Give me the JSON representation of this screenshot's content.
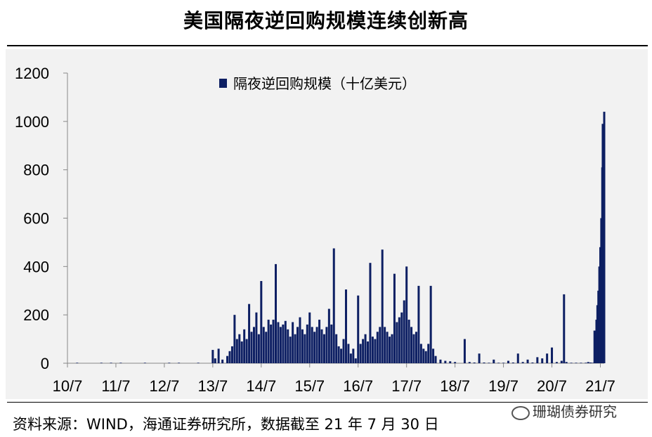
{
  "title": "美国隔夜逆回购规模连续创新高",
  "source": "资料来源：WIND，海通证券研究所，数据截至 21 年 7 月 30 日",
  "watermark": "珊瑚债券研究",
  "colors": {
    "series": "#0d1f63",
    "axis": "#888888",
    "panel": "#f2f2f2"
  },
  "chart_data": {
    "type": "bar",
    "title": "",
    "xlabel": "",
    "ylabel": "",
    "ylim": [
      0,
      1200
    ],
    "yticks": [
      0,
      200,
      400,
      600,
      800,
      1000,
      1200
    ],
    "xlim": [
      2010.5,
      2021.58
    ],
    "xticks": [
      {
        "label": "10/7",
        "x": 2010.5
      },
      {
        "label": "11/7",
        "x": 2011.5
      },
      {
        "label": "12/7",
        "x": 2012.5
      },
      {
        "label": "13/7",
        "x": 2013.5
      },
      {
        "label": "14/7",
        "x": 2014.5
      },
      {
        "label": "15/7",
        "x": 2015.5
      },
      {
        "label": "16/7",
        "x": 2016.5
      },
      {
        "label": "17/7",
        "x": 2017.5
      },
      {
        "label": "18/7",
        "x": 2018.5
      },
      {
        "label": "19/7",
        "x": 2019.5
      },
      {
        "label": "20/7",
        "x": 2020.5
      },
      {
        "label": "21/7",
        "x": 2021.5
      }
    ],
    "grid": false,
    "legend": "top-center",
    "series": [
      {
        "name": "隔夜逆回购规模（十亿美元）",
        "points": [
          [
            2010.7,
            2
          ],
          [
            2011.2,
            2
          ],
          [
            2011.4,
            2
          ],
          [
            2011.6,
            2
          ],
          [
            2012.1,
            2
          ],
          [
            2012.6,
            2
          ],
          [
            2012.8,
            2
          ],
          [
            2013.2,
            2
          ],
          [
            2013.5,
            55
          ],
          [
            2013.55,
            20
          ],
          [
            2013.62,
            60
          ],
          [
            2013.7,
            15
          ],
          [
            2013.8,
            30
          ],
          [
            2013.85,
            50
          ],
          [
            2013.9,
            70
          ],
          [
            2013.95,
            200
          ],
          [
            2014.0,
            100
          ],
          [
            2014.05,
            120
          ],
          [
            2014.1,
            90
          ],
          [
            2014.15,
            140
          ],
          [
            2014.2,
            100
          ],
          [
            2014.25,
            245
          ],
          [
            2014.3,
            130
          ],
          [
            2014.35,
            150
          ],
          [
            2014.4,
            210
          ],
          [
            2014.45,
            120
          ],
          [
            2014.5,
            340
          ],
          [
            2014.55,
            150
          ],
          [
            2014.6,
            130
          ],
          [
            2014.65,
            180
          ],
          [
            2014.7,
            160
          ],
          [
            2014.75,
            180
          ],
          [
            2014.8,
            410
          ],
          [
            2014.85,
            170
          ],
          [
            2014.9,
            150
          ],
          [
            2014.95,
            160
          ],
          [
            2015.0,
            175
          ],
          [
            2015.05,
            140
          ],
          [
            2015.1,
            110
          ],
          [
            2015.15,
            170
          ],
          [
            2015.2,
            120
          ],
          [
            2015.25,
            150
          ],
          [
            2015.3,
            190
          ],
          [
            2015.35,
            140
          ],
          [
            2015.4,
            120
          ],
          [
            2015.45,
            160
          ],
          [
            2015.5,
            210
          ],
          [
            2015.55,
            150
          ],
          [
            2015.6,
            130
          ],
          [
            2015.65,
            150
          ],
          [
            2015.7,
            180
          ],
          [
            2015.75,
            140
          ],
          [
            2015.8,
            120
          ],
          [
            2015.85,
            150
          ],
          [
            2015.9,
            225
          ],
          [
            2015.95,
            160
          ],
          [
            2016.0,
            475
          ],
          [
            2016.05,
            120
          ],
          [
            2016.1,
            70
          ],
          [
            2016.15,
            60
          ],
          [
            2016.2,
            100
          ],
          [
            2016.25,
            305
          ],
          [
            2016.3,
            80
          ],
          [
            2016.35,
            40
          ],
          [
            2016.4,
            60
          ],
          [
            2016.45,
            20
          ],
          [
            2016.5,
            280
          ],
          [
            2016.55,
            80
          ],
          [
            2016.6,
            100
          ],
          [
            2016.65,
            120
          ],
          [
            2016.7,
            90
          ],
          [
            2016.75,
            415
          ],
          [
            2016.8,
            110
          ],
          [
            2016.85,
            100
          ],
          [
            2016.9,
            130
          ],
          [
            2016.95,
            150
          ],
          [
            2017.0,
            470
          ],
          [
            2017.05,
            150
          ],
          [
            2017.1,
            130
          ],
          [
            2017.15,
            110
          ],
          [
            2017.2,
            120
          ],
          [
            2017.25,
            370
          ],
          [
            2017.3,
            170
          ],
          [
            2017.35,
            190
          ],
          [
            2017.4,
            210
          ],
          [
            2017.45,
            260
          ],
          [
            2017.5,
            400
          ],
          [
            2017.55,
            180
          ],
          [
            2017.6,
            150
          ],
          [
            2017.65,
            120
          ],
          [
            2017.7,
            130
          ],
          [
            2017.75,
            320
          ],
          [
            2017.8,
            80
          ],
          [
            2017.85,
            60
          ],
          [
            2017.9,
            50
          ],
          [
            2017.95,
            80
          ],
          [
            2018.0,
            320
          ],
          [
            2018.05,
            60
          ],
          [
            2018.1,
            30
          ],
          [
            2018.2,
            15
          ],
          [
            2018.3,
            10
          ],
          [
            2018.4,
            8
          ],
          [
            2018.5,
            5
          ],
          [
            2018.7,
            100
          ],
          [
            2018.8,
            5
          ],
          [
            2018.9,
            3
          ],
          [
            2019.0,
            40
          ],
          [
            2019.1,
            3
          ],
          [
            2019.2,
            2
          ],
          [
            2019.3,
            15
          ],
          [
            2019.4,
            2
          ],
          [
            2019.5,
            2
          ],
          [
            2019.6,
            10
          ],
          [
            2019.7,
            3
          ],
          [
            2019.8,
            40
          ],
          [
            2019.9,
            5
          ],
          [
            2020.0,
            15
          ],
          [
            2020.1,
            3
          ],
          [
            2020.2,
            25
          ],
          [
            2020.3,
            20
          ],
          [
            2020.4,
            40
          ],
          [
            2020.5,
            65
          ],
          [
            2020.6,
            5
          ],
          [
            2020.7,
            10
          ],
          [
            2020.75,
            285
          ],
          [
            2020.8,
            5
          ],
          [
            2020.9,
            2
          ],
          [
            2021.0,
            2
          ],
          [
            2021.1,
            2
          ],
          [
            2021.2,
            2
          ],
          [
            2021.25,
            5
          ],
          [
            2021.3,
            3
          ],
          [
            2021.35,
            2
          ],
          [
            2021.38,
            135
          ],
          [
            2021.4,
            50
          ],
          [
            2021.42,
            180
          ],
          [
            2021.44,
            240
          ],
          [
            2021.46,
            300
          ],
          [
            2021.48,
            400
          ],
          [
            2021.5,
            480
          ],
          [
            2021.52,
            600
          ],
          [
            2021.54,
            810
          ],
          [
            2021.55,
            990
          ],
          [
            2021.57,
            920
          ],
          [
            2021.58,
            1040
          ]
        ]
      }
    ]
  }
}
